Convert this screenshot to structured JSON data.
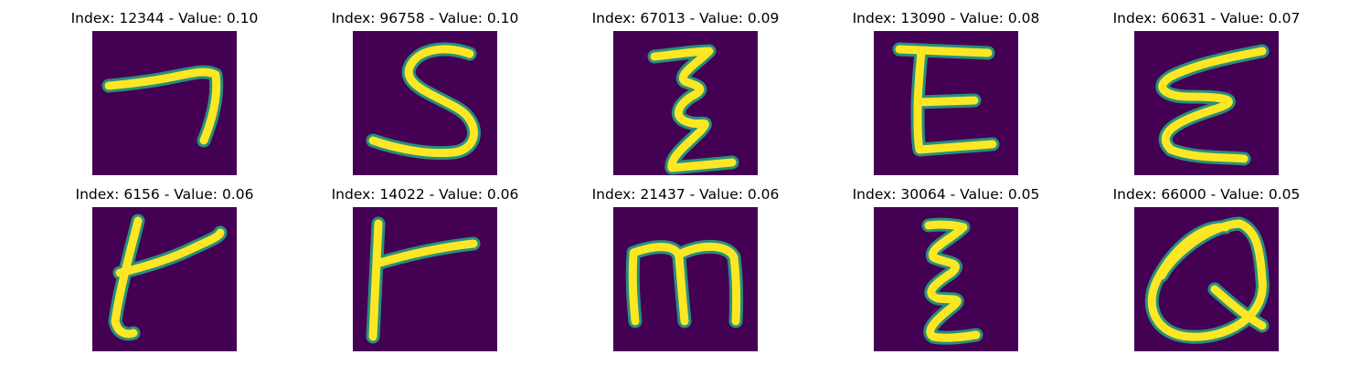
{
  "colors": {
    "background": "#440154",
    "stroke": "#fde725",
    "edge": "#23a884"
  },
  "samples": [
    {
      "title": "Index: 12344 - Value: 0.10"
    },
    {
      "title": "Index: 96758 - Value: 0.10"
    },
    {
      "title": "Index: 67013 - Value: 0.09"
    },
    {
      "title": "Index: 13090 - Value: 0.08"
    },
    {
      "title": "Index: 60631 - Value: 0.07"
    },
    {
      "title": "Index: 6156 - Value: 0.06"
    },
    {
      "title": "Index: 14022 - Value: 0.06"
    },
    {
      "title": "Index: 21437 - Value: 0.06"
    },
    {
      "title": "Index: 30064 - Value: 0.05"
    },
    {
      "title": "Index: 66000 - Value: 0.05"
    }
  ]
}
